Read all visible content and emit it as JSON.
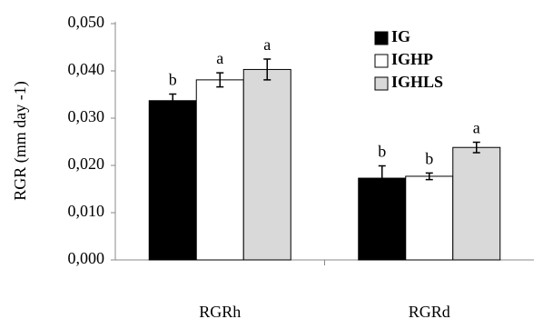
{
  "chart_data": {
    "type": "bar",
    "y_label": "RGR (mm day -1)",
    "categories": [
      "RGRh",
      "RGRd"
    ],
    "series": [
      {
        "name": "IG",
        "color": "#000000",
        "values": [
          0.0337,
          0.0173
        ],
        "errors": [
          0.0014,
          0.0026
        ],
        "letters": [
          "b",
          "b"
        ]
      },
      {
        "name": "IGHP",
        "color": "#ffffff",
        "values": [
          0.0381,
          0.0177
        ],
        "errors": [
          0.0015,
          0.0007
        ],
        "letters": [
          "a",
          "b"
        ]
      },
      {
        "name": "IGHLS",
        "color": "#d9d9d9",
        "values": [
          0.0403,
          0.0238
        ],
        "errors": [
          0.0022,
          0.0011
        ],
        "letters": [
          "a",
          "a"
        ]
      }
    ],
    "ylim": [
      0,
      0.05
    ],
    "yticks": [
      {
        "value": 0,
        "label": "0,000"
      },
      {
        "value": 0.01,
        "label": "0,010"
      },
      {
        "value": 0.02,
        "label": "0,020"
      },
      {
        "value": 0.03,
        "label": "0,030"
      },
      {
        "value": 0.04,
        "label": "0,040"
      },
      {
        "value": 0.05,
        "label": "0,050"
      }
    ],
    "grid": false,
    "legend": "top-right"
  }
}
